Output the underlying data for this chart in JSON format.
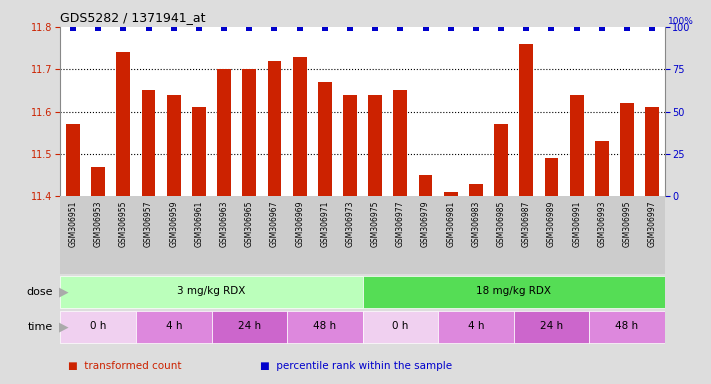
{
  "title": "GDS5282 / 1371941_at",
  "samples": [
    "GSM306951",
    "GSM306953",
    "GSM306955",
    "GSM306957",
    "GSM306959",
    "GSM306961",
    "GSM306963",
    "GSM306965",
    "GSM306967",
    "GSM306969",
    "GSM306971",
    "GSM306973",
    "GSM306975",
    "GSM306977",
    "GSM306979",
    "GSM306981",
    "GSM306983",
    "GSM306985",
    "GSM306987",
    "GSM306989",
    "GSM306991",
    "GSM306993",
    "GSM306995",
    "GSM306997"
  ],
  "values": [
    11.57,
    11.47,
    11.74,
    11.65,
    11.64,
    11.61,
    11.7,
    11.7,
    11.72,
    11.73,
    11.67,
    11.64,
    11.64,
    11.65,
    11.45,
    11.41,
    11.43,
    11.57,
    11.76,
    11.49,
    11.64,
    11.53,
    11.62,
    11.61
  ],
  "ylim": [
    11.4,
    11.8
  ],
  "yticks_left": [
    11.4,
    11.5,
    11.6,
    11.7,
    11.8
  ],
  "yticks_right": [
    0,
    25,
    50,
    75,
    100
  ],
  "bar_color": "#cc2200",
  "percentile_color": "#0000cc",
  "gridline_color": "#555555",
  "bg_color": "#dddddd",
  "plot_bg": "#ffffff",
  "xtick_bg": "#cccccc",
  "dose_groups": [
    {
      "label": "3 mg/kg RDX",
      "start": 0,
      "end": 12,
      "color": "#bbffbb"
    },
    {
      "label": "18 mg/kg RDX",
      "start": 12,
      "end": 24,
      "color": "#55dd55"
    }
  ],
  "time_groups": [
    {
      "label": "0 h",
      "start": 0,
      "end": 3,
      "color": "#f0d0f0"
    },
    {
      "label": "4 h",
      "start": 3,
      "end": 6,
      "color": "#dd88dd"
    },
    {
      "label": "24 h",
      "start": 6,
      "end": 9,
      "color": "#cc66cc"
    },
    {
      "label": "48 h",
      "start": 9,
      "end": 12,
      "color": "#dd88dd"
    },
    {
      "label": "0 h",
      "start": 12,
      "end": 15,
      "color": "#f0d0f0"
    },
    {
      "label": "4 h",
      "start": 15,
      "end": 18,
      "color": "#dd88dd"
    },
    {
      "label": "24 h",
      "start": 18,
      "end": 21,
      "color": "#cc66cc"
    },
    {
      "label": "48 h",
      "start": 21,
      "end": 24,
      "color": "#dd88dd"
    }
  ],
  "legend_items": [
    {
      "label": "transformed count",
      "color": "#cc2200"
    },
    {
      "label": "percentile rank within the sample",
      "color": "#0000cc"
    }
  ]
}
